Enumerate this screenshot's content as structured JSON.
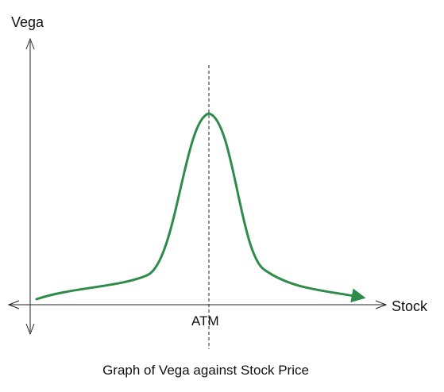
{
  "diagram": {
    "caption": "Graph of Vega against Stock Price",
    "y_axis_label": "Vega",
    "x_axis_label": "Stock",
    "marker_label": "ATM",
    "curve_color": "#2e8b4a",
    "axis_color": "#222222"
  }
}
